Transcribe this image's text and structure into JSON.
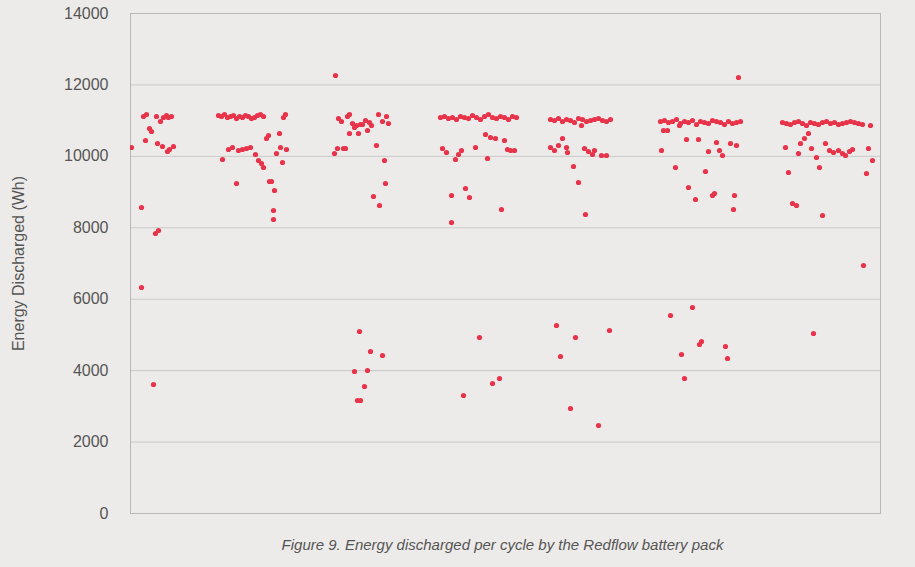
{
  "chart_data": {
    "type": "scatter",
    "ylabel": "Energy Discharged (Wh)",
    "caption": "Figure 9. Energy discharged per cycle by the Redflow battery pack",
    "color": "#e8344a",
    "marker": "circle",
    "grid": true,
    "tick_labels": "y",
    "xlim": [
      0,
      750
    ],
    "ylim": [
      0,
      14000
    ],
    "yticks": [
      0,
      2000,
      4000,
      6000,
      8000,
      10000,
      12000,
      14000
    ],
    "x": [
      1,
      11,
      11,
      13,
      16,
      15,
      19,
      21,
      23,
      25,
      28,
      26,
      27,
      30,
      32,
      33,
      36,
      37,
      39,
      41,
      43,
      38,
      88,
      91,
      94,
      97,
      100,
      103,
      106,
      109,
      112,
      115,
      118,
      121,
      124,
      127,
      130,
      133,
      92,
      98,
      102,
      106,
      108,
      112,
      116,
      120,
      125,
      128,
      131,
      133,
      136,
      138,
      139,
      141,
      143,
      143,
      144,
      146,
      149,
      150,
      152,
      153,
      155,
      156,
      205,
      204,
      207,
      208,
      211,
      213,
      215,
      217,
      219,
      219,
      222,
      224,
      226,
      228,
      230,
      232,
      235,
      237,
      239,
      241,
      243,
      246,
      248,
      249,
      252,
      254,
      256,
      255,
      258,
      229,
      224,
      227,
      230,
      234,
      237,
      240,
      252,
      310,
      314,
      318,
      322,
      326,
      330,
      334,
      338,
      342,
      346,
      350,
      354,
      358,
      362,
      366,
      370,
      374,
      378,
      382,
      386,
      312,
      316,
      321,
      321,
      325,
      328,
      331,
      335,
      339,
      345,
      349,
      355,
      357,
      360,
      362,
      365,
      369,
      371,
      374,
      377,
      380,
      384,
      333,
      420,
      424,
      428,
      432,
      436,
      440,
      444,
      448,
      452,
      456,
      460,
      464,
      468,
      472,
      476,
      480,
      420,
      424,
      426,
      428,
      430,
      432,
      436,
      437,
      440,
      443,
      445,
      448,
      451,
      454,
      455,
      458,
      462,
      464,
      468,
      471,
      476,
      479,
      530,
      534,
      538,
      542,
      546,
      550,
      554,
      558,
      562,
      566,
      570,
      574,
      578,
      582,
      586,
      590,
      594,
      598,
      602,
      606,
      610,
      531,
      533,
      537,
      540,
      545,
      549,
      551,
      554,
      556,
      558,
      562,
      565,
      568,
      569,
      571,
      575,
      578,
      582,
      584,
      586,
      589,
      592,
      595,
      597,
      600,
      603,
      604,
      606,
      608,
      652,
      656,
      660,
      664,
      668,
      672,
      676,
      680,
      684,
      688,
      692,
      696,
      700,
      704,
      708,
      712,
      716,
      720,
      724,
      728,
      732,
      655,
      658,
      662,
      666,
      668,
      670,
      674,
      678,
      681,
      683,
      686,
      689,
      692,
      695,
      699,
      703,
      708,
      712,
      715,
      719,
      722,
      733,
      736,
      738,
      740,
      742
    ],
    "values": [
      10248,
      8568,
      6328,
      11116,
      11172,
      10444,
      10780,
      10696,
      3612,
      7840,
      7924,
      11116,
      10360,
      10976,
      10276,
      11088,
      11144,
      10136,
      10192,
      11116,
      10276,
      11088,
      11144,
      11116,
      11172,
      11088,
      11116,
      11144,
      11060,
      11116,
      11088,
      11144,
      11116,
      11060,
      11088,
      11144,
      11172,
      11116,
      9912,
      10192,
      10248,
      9240,
      10164,
      10192,
      10220,
      10248,
      10052,
      9884,
      9800,
      9688,
      10500,
      10584,
      9296,
      9296,
      8484,
      8232,
      9044,
      10080,
      10640,
      10248,
      9828,
      11088,
      11172,
      10192,
      12264,
      10080,
      10220,
      11060,
      10976,
      10220,
      10220,
      11116,
      11172,
      10640,
      10920,
      10808,
      10864,
      10640,
      10892,
      10892,
      11004,
      10724,
      10948,
      10864,
      8876,
      10304,
      11172,
      8624,
      10976,
      9884,
      11116,
      9240,
      10920,
      5096,
      3976,
      3164,
      3164,
      3556,
      4004,
      4536,
      4424,
      11088,
      11116,
      11060,
      11088,
      11032,
      11116,
      11088,
      11060,
      11144,
      11088,
      11032,
      11116,
      11172,
      11088,
      11060,
      11116,
      11088,
      11032,
      11116,
      11088,
      10220,
      10108,
      8904,
      8148,
      9912,
      10052,
      10164,
      9100,
      8848,
      10248,
      4928,
      10612,
      9940,
      10528,
      3640,
      10500,
      3780,
      8512,
      10444,
      10192,
      10164,
      10164,
      3304,
      11032,
      11004,
      11060,
      10976,
      11032,
      11004,
      10948,
      11060,
      11032,
      10976,
      11004,
      11032,
      11060,
      11004,
      10976,
      11032,
      10248,
      10164,
      5264,
      10304,
      4396,
      10500,
      10248,
      10108,
      2940,
      9716,
      4928,
      9268,
      10864,
      10220,
      8372,
      10136,
      10052,
      10164,
      2464,
      10024,
      10024,
      5124,
      10976,
      11004,
      10948,
      10976,
      11032,
      10920,
      10976,
      10948,
      11004,
      10892,
      10976,
      10948,
      10920,
      11004,
      10976,
      10948,
      10892,
      10976,
      10920,
      10948,
      10976,
      10164,
      10724,
      10724,
      5544,
      9688,
      10864,
      4452,
      3780,
      10472,
      9128,
      5768,
      8792,
      10472,
      4732,
      4816,
      9576,
      10136,
      8904,
      8960,
      10388,
      10164,
      10024,
      4676,
      4340,
      10360,
      8512,
      8904,
      10304,
      12208,
      10948,
      10920,
      10892,
      10948,
      10976,
      10920,
      10864,
      10948,
      10920,
      10892,
      10948,
      10976,
      10920,
      10948,
      10892,
      10920,
      10948,
      10976,
      10948,
      10920,
      10892,
      10248,
      9548,
      8680,
      8624,
      10080,
      10360,
      10500,
      10640,
      10220,
      5040,
      9968,
      9688,
      8344,
      10360,
      10164,
      10108,
      10164,
      10080,
      10024,
      10136,
      10192,
      6944,
      9520,
      10220,
      10864,
      9884
    ]
  }
}
